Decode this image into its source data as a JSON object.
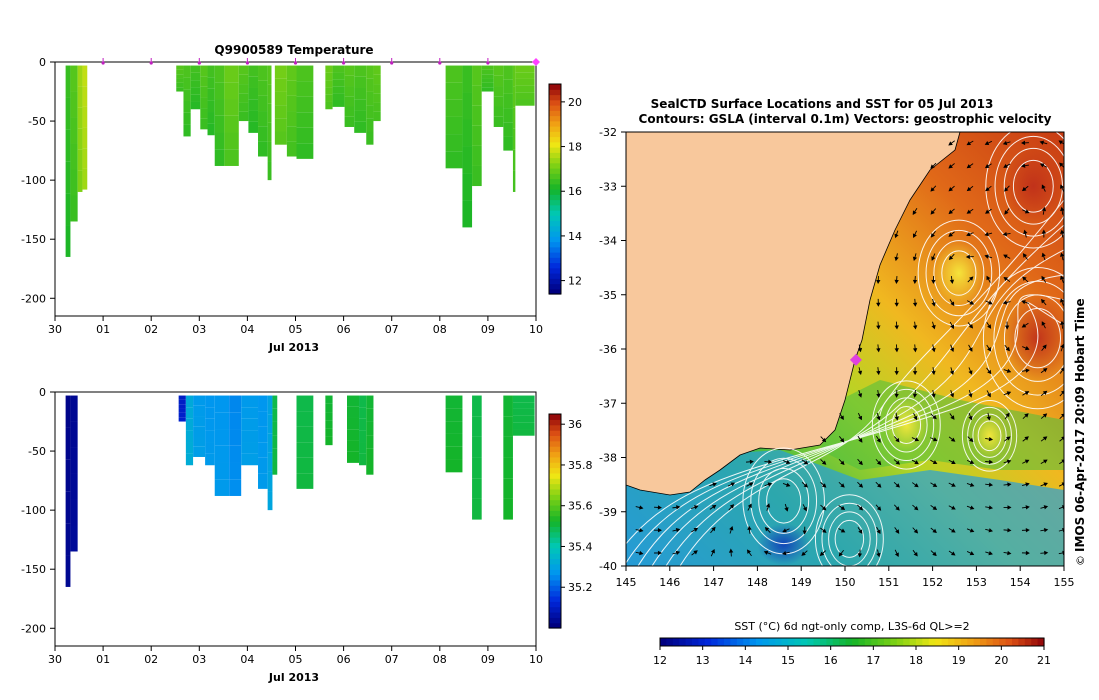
{
  "chart_data": [
    {
      "type": "heatmap",
      "title": "Q9900589  Temperature",
      "xlabel": "Jul 2013",
      "ylabel": "",
      "x_tick_labels": [
        "30",
        "01",
        "02",
        "03",
        "04",
        "05",
        "06",
        "07",
        "08",
        "09",
        "10"
      ],
      "x_range": [
        0,
        10
      ],
      "y_ticks": [
        0,
        -50,
        -100,
        -150,
        -200
      ],
      "y_range": [
        -215,
        0
      ],
      "profile_markers": [
        1,
        2,
        3,
        4,
        5,
        6,
        7,
        8,
        9
      ],
      "highlight_marker": 10,
      "colorbar": {
        "min": 11.4,
        "max": 20.8,
        "ticks": [
          12,
          14,
          16,
          18,
          20
        ]
      },
      "profiles": [
        {
          "x0": 0.2,
          "x1": 0.3,
          "depth": 165,
          "value": 16.3
        },
        {
          "x0": 0.3,
          "x1": 0.45,
          "depth": 135,
          "value": 16.6
        },
        {
          "x0": 0.45,
          "x1": 0.55,
          "depth": 110,
          "value": 17.3
        },
        {
          "x0": 0.55,
          "x1": 0.65,
          "depth": 108,
          "value": 17.6
        },
        {
          "x0": 2.5,
          "x1": 2.65,
          "depth": 25,
          "value": 16.6
        },
        {
          "x0": 2.65,
          "x1": 2.8,
          "depth": 63,
          "value": 16.5
        },
        {
          "x0": 2.8,
          "x1": 3.0,
          "depth": 40,
          "value": 16.4
        },
        {
          "x0": 3.0,
          "x1": 3.15,
          "depth": 57,
          "value": 16.6
        },
        {
          "x0": 3.15,
          "x1": 3.3,
          "depth": 62,
          "value": 16.4
        },
        {
          "x0": 3.3,
          "x1": 3.5,
          "depth": 88,
          "value": 16.5
        },
        {
          "x0": 3.5,
          "x1": 3.8,
          "depth": 88,
          "value": 16.8
        },
        {
          "x0": 3.8,
          "x1": 4.0,
          "depth": 50,
          "value": 16.6
        },
        {
          "x0": 4.0,
          "x1": 4.2,
          "depth": 60,
          "value": 16.4
        },
        {
          "x0": 4.2,
          "x1": 4.4,
          "depth": 80,
          "value": 16.5
        },
        {
          "x0": 4.4,
          "x1": 4.48,
          "depth": 100,
          "value": 16.6
        },
        {
          "x0": 4.55,
          "x1": 4.8,
          "depth": 70,
          "value": 16.9
        },
        {
          "x0": 4.8,
          "x1": 5.0,
          "depth": 80,
          "value": 16.7
        },
        {
          "x0": 5.0,
          "x1": 5.35,
          "depth": 82,
          "value": 16.5
        },
        {
          "x0": 5.6,
          "x1": 5.75,
          "depth": 40,
          "value": 16.8
        },
        {
          "x0": 5.75,
          "x1": 6.0,
          "depth": 38,
          "value": 16.5
        },
        {
          "x0": 6.0,
          "x1": 6.2,
          "depth": 55,
          "value": 16.6
        },
        {
          "x0": 6.2,
          "x1": 6.45,
          "depth": 60,
          "value": 16.5
        },
        {
          "x0": 6.45,
          "x1": 6.6,
          "depth": 70,
          "value": 16.6
        },
        {
          "x0": 6.6,
          "x1": 6.75,
          "depth": 50,
          "value": 16.7
        },
        {
          "x0": 8.1,
          "x1": 8.45,
          "depth": 90,
          "value": 16.5
        },
        {
          "x0": 8.45,
          "x1": 8.65,
          "depth": 140,
          "value": 16.3
        },
        {
          "x0": 8.65,
          "x1": 8.85,
          "depth": 105,
          "value": 16.6
        },
        {
          "x0": 8.85,
          "x1": 9.1,
          "depth": 25,
          "value": 16.5
        },
        {
          "x0": 9.1,
          "x1": 9.3,
          "depth": 55,
          "value": 16.6
        },
        {
          "x0": 9.3,
          "x1": 9.5,
          "depth": 75,
          "value": 16.5
        },
        {
          "x0": 9.5,
          "x1": 9.55,
          "depth": 110,
          "value": 16.7
        },
        {
          "x0": 9.55,
          "x1": 9.95,
          "depth": 37,
          "value": 16.8
        }
      ]
    },
    {
      "type": "heatmap",
      "title": "",
      "xlabel": "Jul 2013",
      "ylabel": "",
      "x_tick_labels": [
        "30",
        "01",
        "02",
        "03",
        "04",
        "05",
        "06",
        "07",
        "08",
        "09",
        "10"
      ],
      "x_range": [
        0,
        10
      ],
      "y_ticks": [
        0,
        -50,
        -100,
        -150,
        -200
      ],
      "y_range": [
        -215,
        0
      ],
      "colorbar": {
        "min": 35.0,
        "max": 36.05,
        "ticks": [
          35.2,
          35.4,
          35.6,
          35.8,
          36
        ]
      },
      "profiles": [
        {
          "x0": 0.2,
          "x1": 0.3,
          "depth": 165,
          "value": 35.02
        },
        {
          "x0": 0.3,
          "x1": 0.45,
          "depth": 135,
          "value": 35.03
        },
        {
          "x0": 2.55,
          "x1": 2.7,
          "depth": 25,
          "value": 35.1
        },
        {
          "x0": 2.7,
          "x1": 2.85,
          "depth": 62,
          "value": 35.32
        },
        {
          "x0": 2.85,
          "x1": 3.1,
          "depth": 55,
          "value": 35.28
        },
        {
          "x0": 3.1,
          "x1": 3.3,
          "depth": 62,
          "value": 35.27
        },
        {
          "x0": 3.3,
          "x1": 3.6,
          "depth": 88,
          "value": 35.27
        },
        {
          "x0": 3.6,
          "x1": 3.85,
          "depth": 88,
          "value": 35.25
        },
        {
          "x0": 3.85,
          "x1": 4.2,
          "depth": 62,
          "value": 35.28
        },
        {
          "x0": 4.2,
          "x1": 4.4,
          "depth": 82,
          "value": 35.27
        },
        {
          "x0": 4.4,
          "x1": 4.5,
          "depth": 100,
          "value": 35.3
        },
        {
          "x0": 4.5,
          "x1": 4.6,
          "depth": 70,
          "value": 35.5
        },
        {
          "x0": 5.0,
          "x1": 5.35,
          "depth": 82,
          "value": 35.5
        },
        {
          "x0": 5.6,
          "x1": 5.75,
          "depth": 45,
          "value": 35.52
        },
        {
          "x0": 6.05,
          "x1": 6.3,
          "depth": 60,
          "value": 35.52
        },
        {
          "x0": 6.3,
          "x1": 6.45,
          "depth": 62,
          "value": 35.5
        },
        {
          "x0": 6.45,
          "x1": 6.6,
          "depth": 70,
          "value": 35.52
        },
        {
          "x0": 8.1,
          "x1": 8.45,
          "depth": 68,
          "value": 35.52
        },
        {
          "x0": 8.65,
          "x1": 8.85,
          "depth": 108,
          "value": 35.5
        },
        {
          "x0": 8.85,
          "x1": 9.1,
          "depth": 0,
          "value": 35.5
        },
        {
          "x0": 9.1,
          "x1": 9.3,
          "depth": 0,
          "value": 35.5
        },
        {
          "x0": 9.3,
          "x1": 9.5,
          "depth": 108,
          "value": 35.52
        },
        {
          "x0": 9.5,
          "x1": 9.95,
          "depth": 37,
          "value": 35.5
        }
      ]
    },
    {
      "type": "heatmap",
      "title": "SealCTD Surface Locations and SST for 05 Jul 2013",
      "subtitle": "Contours: GSLA (interval 0.1m) Vectors: geostrophic velocity",
      "xlabel": "",
      "ylabel": "",
      "x_ticks": [
        145,
        146,
        147,
        148,
        149,
        150,
        151,
        152,
        153,
        154,
        155
      ],
      "y_ticks": [
        -32,
        -33,
        -34,
        -35,
        -36,
        -37,
        -38,
        -39,
        -40
      ],
      "x_range": [
        145,
        155
      ],
      "y_range": [
        -40,
        -32
      ],
      "seal_location": {
        "lon": 150.25,
        "lat": -36.2
      },
      "colorbar": {
        "label": "SST (°C) 6d ngt-only comp, L3S-6d QL>=2",
        "min": 12,
        "max": 21,
        "ticks": [
          12,
          13,
          14,
          15,
          16,
          17,
          18,
          19,
          20,
          21
        ]
      },
      "credit": "IMOS 06-Apr-2017 20:09 Hobart Time",
      "credit_symbol": "©",
      "warm_eddies": [
        {
          "lon": 154.3,
          "lat": -33.0,
          "sst": 20.4,
          "r": 0.7
        },
        {
          "lon": 152.6,
          "lat": -34.6,
          "sst": 18.3,
          "r": 0.6
        },
        {
          "lon": 154.4,
          "lat": -35.8,
          "sst": 20.2,
          "r": 0.8
        },
        {
          "lon": 151.4,
          "lat": -37.4,
          "sst": 18.1,
          "r": 0.5
        },
        {
          "lon": 153.3,
          "lat": -37.6,
          "sst": 17.8,
          "r": 0.4
        }
      ],
      "cold_spots": [
        {
          "lon": 148.6,
          "lat": -39.6,
          "sst": 13.4,
          "r": 0.6
        }
      ]
    }
  ]
}
